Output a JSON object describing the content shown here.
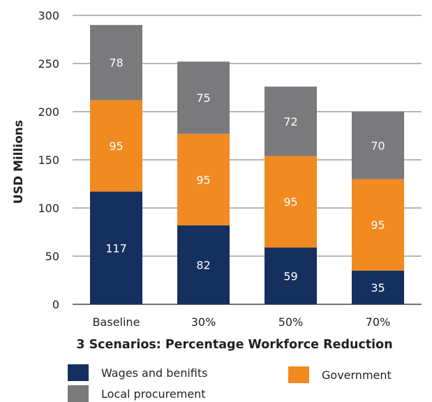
{
  "chart_data": {
    "type": "bar",
    "stacked": true,
    "xlabel": "3 Scenarios: Percentage Workforce Reduction",
    "ylabel": "USD Millions",
    "ylim": [
      0,
      300
    ],
    "yticks": [
      0,
      50,
      100,
      150,
      200,
      250,
      300
    ],
    "grid": true,
    "legend_placement": "bottom",
    "categories": [
      "Baseline",
      "30%",
      "50%",
      "70%"
    ],
    "series": [
      {
        "name": "Wages and benifits",
        "color": "#15305f",
        "values": [
          117,
          82,
          59,
          35
        ]
      },
      {
        "name": "Government",
        "color": "#f18a21",
        "values": [
          95,
          95,
          95,
          95
        ]
      },
      {
        "name": "Local procurement",
        "color": "#7a7a7d",
        "values": [
          78,
          75,
          72,
          70
        ]
      }
    ]
  },
  "legend": [
    {
      "label": "Wages and benifits",
      "color": "#15305f"
    },
    {
      "label": "Government",
      "color": "#f18a21"
    },
    {
      "label": "Local procurement",
      "color": "#7a7a7d"
    }
  ]
}
